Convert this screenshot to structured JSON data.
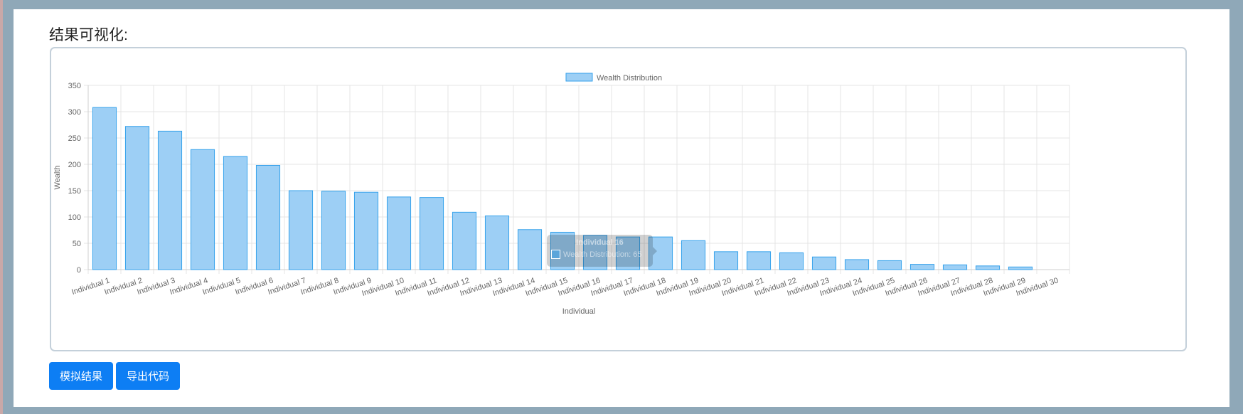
{
  "section": {
    "title": "结果可视化:"
  },
  "buttons": {
    "simulate": "模拟结果",
    "export": "导出代码"
  },
  "tooltip": {
    "title": "Individual 16",
    "body": "Wealth Distribution: 65"
  },
  "colors": {
    "bar_fill": "#9dcff5",
    "bar_border": "#36a2eb",
    "button": "#0d7ef4"
  },
  "chart_data": {
    "type": "bar",
    "legend": "Wealth Distribution",
    "legend_position": "top",
    "xlabel": "Individual",
    "ylabel": "Wealth",
    "ylim": [
      0,
      350
    ],
    "yticks": [
      0,
      50,
      100,
      150,
      200,
      250,
      300,
      350
    ],
    "grid": true,
    "categories": [
      "Individual 1",
      "Individual 2",
      "Individual 3",
      "Individual 4",
      "Individual 5",
      "Individual 6",
      "Individual 7",
      "Individual 8",
      "Individual 9",
      "Individual 10",
      "Individual 11",
      "Individual 12",
      "Individual 13",
      "Individual 14",
      "Individual 15",
      "Individual 16",
      "Individual 17",
      "Individual 18",
      "Individual 19",
      "Individual 20",
      "Individual 21",
      "Individual 22",
      "Individual 23",
      "Individual 24",
      "Individual 25",
      "Individual 26",
      "Individual 27",
      "Individual 28",
      "Individual 29",
      "Individual 30"
    ],
    "values": [
      308,
      272,
      263,
      228,
      215,
      198,
      150,
      149,
      147,
      138,
      137,
      109,
      102,
      76,
      71,
      65,
      62,
      62,
      55,
      34,
      34,
      32,
      24,
      19,
      17,
      10,
      9,
      7,
      5,
      0
    ]
  }
}
